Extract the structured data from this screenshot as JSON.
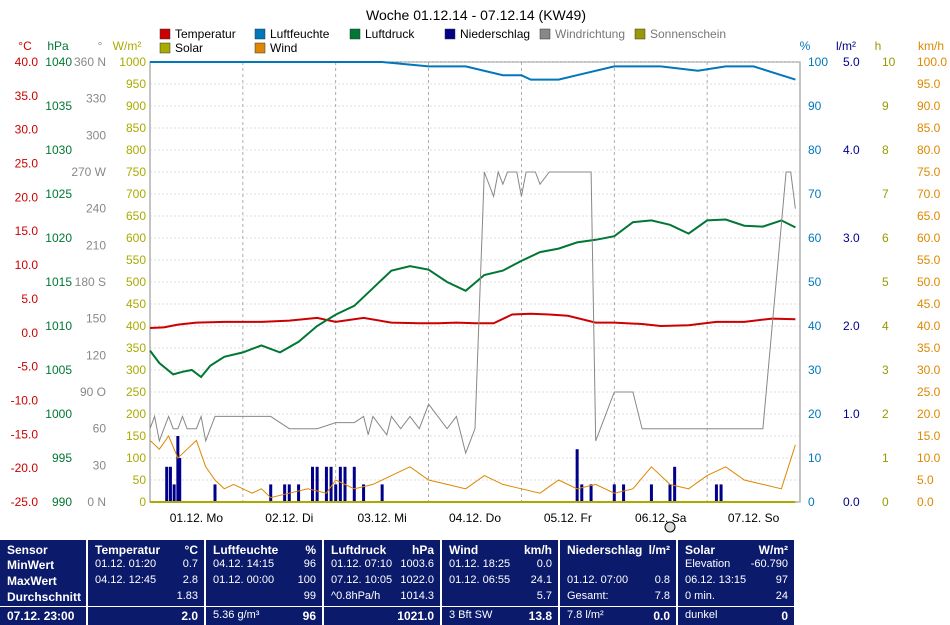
{
  "chart_data": {
    "type": "line",
    "title": "Woche 01.12.14 - 07.12.14 (KW49)",
    "legend": [
      {
        "name": "Temperatur",
        "color": "#cc0000"
      },
      {
        "name": "Luftfeuchte",
        "color": "#0077bb"
      },
      {
        "name": "Luftdruck",
        "color": "#007733"
      },
      {
        "name": "Niederschlag",
        "color": "#00008b"
      },
      {
        "name": "Windrichtung",
        "color": "#888888"
      },
      {
        "name": "Sonnenschein",
        "color": "#999900"
      },
      {
        "name": "Solar",
        "color": "#aaaa00"
      },
      {
        "name": "Wind",
        "color": "#dd8800"
      }
    ],
    "x_labels": [
      "01.12. Mo",
      "02.12. Di",
      "03.12. Mi",
      "04.12. Do",
      "05.12. Fr",
      "06.12. Sa",
      "07.12. So"
    ],
    "axes": {
      "temperature": {
        "unit": "°C",
        "color": "#cc0000",
        "ticks": [
          "40.0",
          "35.0",
          "30.0",
          "25.0",
          "20.0",
          "15.0",
          "10.0",
          "5.0",
          "0.0",
          "-5.0",
          "-10.0",
          "-15.0",
          "-20.0",
          "-25.0"
        ]
      },
      "pressure": {
        "unit": "hPa",
        "color": "#007733",
        "ticks": [
          "1040",
          "1035",
          "1030",
          "1025",
          "1020",
          "1015",
          "1010",
          "1005",
          "1000",
          "995",
          "990"
        ]
      },
      "direction": {
        "unit": "°",
        "color": "#888888",
        "ticks": [
          "360 N",
          "330",
          "300",
          "270 W",
          "240",
          "210",
          "180 S",
          "150",
          "120",
          "90 O",
          "60",
          "30",
          "0 N"
        ]
      },
      "solar": {
        "unit": "W/m²",
        "color": "#aaaa00",
        "ticks": [
          "1000",
          "950",
          "900",
          "850",
          "800",
          "750",
          "700",
          "650",
          "600",
          "550",
          "500",
          "450",
          "400",
          "350",
          "300",
          "250",
          "200",
          "150",
          "100",
          "50",
          "0"
        ]
      },
      "humidity": {
        "unit": "%",
        "color": "#0077bb",
        "ticks": [
          "100",
          "90",
          "80",
          "70",
          "60",
          "50",
          "40",
          "30",
          "20",
          "10",
          "0"
        ]
      },
      "rain": {
        "unit": "l/m²",
        "color": "#00008b",
        "ticks": [
          "5.0",
          "4.0",
          "3.0",
          "2.0",
          "1.0",
          "0.0"
        ]
      },
      "sunshine": {
        "unit": "h",
        "color": "#999900",
        "ticks": [
          "10",
          "9",
          "8",
          "7",
          "6",
          "5",
          "4",
          "3",
          "2",
          "1",
          "0"
        ]
      },
      "wind": {
        "unit": "km/h",
        "color": "#dd8800",
        "ticks": [
          "100.0",
          "95.0",
          "90.0",
          "85.0",
          "80.0",
          "75.0",
          "70.0",
          "65.0",
          "60.0",
          "55.0",
          "50.0",
          "45.0",
          "40.0",
          "35.0",
          "30.0",
          "25.0",
          "20.0",
          "15.0",
          "10.0",
          "5.0",
          "0.0"
        ]
      }
    },
    "series": [
      {
        "name": "Temperatur",
        "axis": "temperature",
        "x": [
          0,
          0.15,
          0.3,
          0.5,
          0.8,
          1.2,
          1.5,
          1.8,
          2.0,
          2.3,
          2.6,
          2.9,
          3.1,
          3.3,
          3.5,
          3.7,
          3.9,
          4.1,
          4.3,
          4.5,
          4.8,
          5.0,
          5.3,
          5.5,
          5.8,
          6.1,
          6.4,
          6.7,
          6.95
        ],
        "values": [
          0.7,
          0.8,
          1.2,
          1.5,
          1.6,
          1.6,
          1.8,
          2.2,
          1.6,
          2.2,
          1.5,
          1.4,
          1.4,
          1.5,
          1.4,
          1.4,
          2.7,
          2.8,
          2.7,
          2.5,
          1.5,
          1.5,
          1.3,
          1.0,
          1.1,
          1.6,
          1.6,
          2.1,
          2.0
        ]
      },
      {
        "name": "Luftfeuchte",
        "axis": "humidity",
        "x": [
          0,
          1.0,
          2.0,
          2.5,
          3.0,
          3.4,
          3.8,
          4.0,
          4.1,
          4.4,
          4.6,
          5.0,
          5.5,
          5.9,
          6.2,
          6.5,
          6.8,
          6.95
        ],
        "values": [
          100,
          100,
          100,
          100,
          99,
          99,
          97,
          97,
          96,
          96,
          97,
          99,
          99,
          98,
          99,
          99,
          97,
          96
        ]
      },
      {
        "name": "Luftdruck",
        "axis": "pressure",
        "x": [
          0,
          0.1,
          0.25,
          0.35,
          0.45,
          0.55,
          0.65,
          0.8,
          1.0,
          1.2,
          1.4,
          1.6,
          1.8,
          2.0,
          2.2,
          2.4,
          2.6,
          2.8,
          3.0,
          3.2,
          3.4,
          3.6,
          3.8,
          4.0,
          4.2,
          4.4,
          4.6,
          4.8,
          5.0,
          5.2,
          5.4,
          5.6,
          5.8,
          6.0,
          6.2,
          6.4,
          6.6,
          6.8,
          6.95
        ],
        "values": [
          1007.2,
          1005.8,
          1004.5,
          1004.8,
          1005.0,
          1004.2,
          1005.5,
          1006.5,
          1007.0,
          1007.8,
          1007.0,
          1008.2,
          1010.0,
          1011.3,
          1012.3,
          1014.3,
          1016.3,
          1016.8,
          1016.4,
          1015.0,
          1014.0,
          1015.8,
          1016.3,
          1017.4,
          1018.4,
          1018.8,
          1019.5,
          1019.8,
          1020.2,
          1021.8,
          1022.0,
          1021.5,
          1020.5,
          1022.0,
          1022.1,
          1021.4,
          1021.3,
          1022.0,
          1021.2
        ]
      },
      {
        "name": "Windrichtung",
        "axis": "direction",
        "x": [
          0,
          0.05,
          0.1,
          0.15,
          0.2,
          0.25,
          0.3,
          0.35,
          0.4,
          0.5,
          0.55,
          0.6,
          0.7,
          0.8,
          0.9,
          1.0,
          1.3,
          1.5,
          1.8,
          2.0,
          2.2,
          2.3,
          2.35,
          2.4,
          2.5,
          2.55,
          2.6,
          2.7,
          2.8,
          2.9,
          3.0,
          3.1,
          3.2,
          3.3,
          3.4,
          3.5,
          3.6,
          3.7,
          3.75,
          3.8,
          3.85,
          3.95,
          4.0,
          4.05,
          4.1,
          4.15,
          4.2,
          4.3,
          4.35,
          4.4,
          4.5,
          4.6,
          4.75,
          4.8,
          5.0,
          5.1,
          5.2,
          5.3,
          5.45,
          5.5,
          5.6,
          5.7,
          6.0,
          6.3,
          6.6,
          6.85,
          6.9,
          6.95
        ],
        "values": [
          60,
          70,
          50,
          60,
          70,
          60,
          60,
          70,
          60,
          60,
          70,
          50,
          70,
          70,
          70,
          70,
          70,
          60,
          60,
          65,
          65,
          70,
          55,
          70,
          60,
          55,
          70,
          60,
          70,
          60,
          80,
          70,
          60,
          70,
          40,
          60,
          270,
          250,
          270,
          260,
          270,
          270,
          250,
          270,
          270,
          270,
          260,
          270,
          270,
          270,
          270,
          270,
          270,
          50,
          90,
          90,
          90,
          60,
          60,
          60,
          60,
          60,
          60,
          60,
          60,
          270,
          270,
          240
        ]
      },
      {
        "name": "Wind",
        "axis": "wind",
        "x": [
          0,
          0.1,
          0.2,
          0.3,
          0.4,
          0.5,
          0.6,
          0.7,
          0.8,
          0.9,
          1.0,
          1.1,
          1.2,
          1.3,
          1.5,
          1.7,
          1.9,
          2.0,
          2.2,
          2.4,
          2.6,
          2.8,
          3.0,
          3.2,
          3.4,
          3.6,
          3.8,
          4.0,
          4.2,
          4.4,
          4.6,
          4.8,
          5.0,
          5.2,
          5.4,
          5.6,
          5.8,
          6.0,
          6.2,
          6.4,
          6.6,
          6.8,
          6.95
        ],
        "values": [
          14,
          12,
          15,
          10,
          12,
          14,
          8,
          5,
          3,
          4,
          3,
          2,
          3,
          1,
          2,
          3,
          2,
          5,
          3,
          4,
          6,
          8,
          5,
          4,
          3,
          6,
          4,
          3,
          2,
          5,
          3,
          4,
          2,
          3,
          8,
          4,
          3,
          6,
          8,
          5,
          4,
          3,
          13
        ]
      },
      {
        "name": "Solar",
        "axis": "solar",
        "x": [
          0,
          6.95
        ],
        "values": [
          0,
          0
        ]
      }
    ],
    "rain_bars": {
      "axis": "rain",
      "x": [
        0.18,
        0.22,
        0.26,
        0.3,
        0.32,
        0.7,
        1.3,
        1.45,
        1.5,
        1.6,
        1.75,
        1.8,
        1.9,
        1.95,
        2.0,
        2.05,
        2.1,
        2.2,
        2.3,
        2.5,
        4.6,
        4.65,
        4.75,
        5.0,
        5.1,
        5.4,
        5.6,
        5.65,
        6.1,
        6.15
      ],
      "values": [
        0.4,
        0.4,
        0.2,
        0.75,
        0.5,
        0.2,
        0.2,
        0.2,
        0.2,
        0.2,
        0.4,
        0.4,
        0.4,
        0.4,
        0.2,
        0.4,
        0.4,
        0.4,
        0.2,
        0.2,
        0.6,
        0.2,
        0.2,
        0.2,
        0.2,
        0.2,
        0.2,
        0.4,
        0.2,
        0.2
      ]
    }
  },
  "table": {
    "sensor": {
      "header": "Sensor",
      "rows": [
        "MinWert",
        "MaxWert",
        "Durchschnitt",
        "07.12. 23:00"
      ]
    },
    "temperature": {
      "header": "Temperatur",
      "unit": "°C",
      "rows": [
        [
          "01.12. 01:20",
          "0.7"
        ],
        [
          "04.12. 12:45",
          "2.8"
        ],
        [
          "",
          "1.83"
        ],
        [
          "",
          "2.0"
        ]
      ]
    },
    "humidity": {
      "header": "Luftfeuchte",
      "unit": "%",
      "rows": [
        [
          "04.12. 14:15",
          "96"
        ],
        [
          "01.12. 00:00",
          "100"
        ],
        [
          "",
          "99"
        ],
        [
          "5.36 g/m³",
          "96"
        ]
      ]
    },
    "pressure": {
      "header": "Luftdruck",
      "unit": "hPa",
      "rows": [
        [
          "01.12. 07:10",
          "1003.6"
        ],
        [
          "07.12. 10:05",
          "1022.0"
        ],
        [
          "^0.8hPa/h",
          "1014.3"
        ],
        [
          "",
          "1021.0"
        ]
      ]
    },
    "wind": {
      "header": "Wind",
      "unit": "km/h",
      "rows": [
        [
          "01.12. 18:25",
          "0.0"
        ],
        [
          "01.12. 06:55",
          "24.1"
        ],
        [
          "",
          "5.7"
        ],
        [
          "3 Bft SW",
          "13.8"
        ]
      ]
    },
    "rain": {
      "header": "Niederschlag",
      "unit": "l/m²",
      "rows": [
        [
          "",
          ""
        ],
        [
          "01.12. 07:00",
          "0.8"
        ],
        [
          "Gesamt:",
          "7.8"
        ],
        [
          "7.8 l/m²",
          "0.0"
        ]
      ]
    },
    "solar": {
      "header": "Solar",
      "unit": "W/m²",
      "rows": [
        [
          "Elevation",
          "-60.790"
        ],
        [
          "06.12. 13:15",
          "97"
        ],
        [
          "0 min.",
          "24"
        ],
        [
          "dunkel",
          "0"
        ]
      ]
    }
  }
}
